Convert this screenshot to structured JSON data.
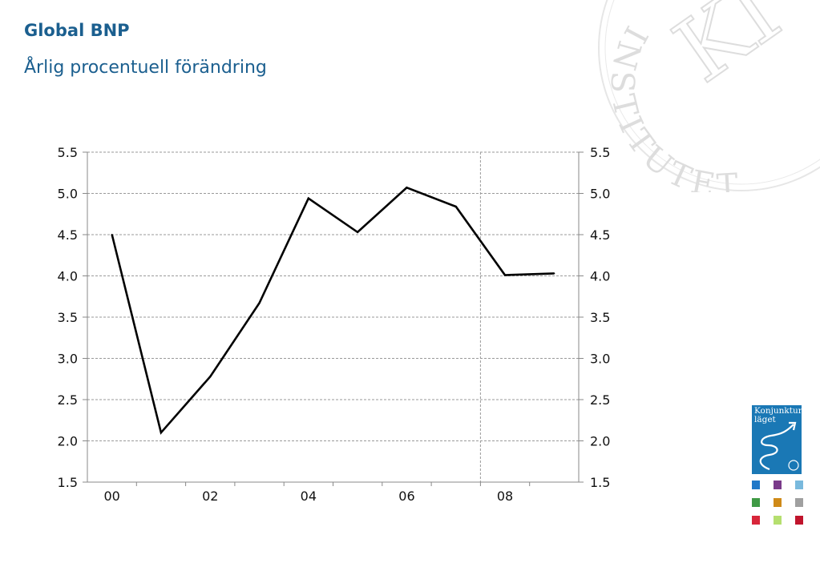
{
  "header": {
    "title": "Global BNP",
    "subtitle": "Årlig procentuell förändring"
  },
  "watermark": {
    "text": "INSTITUTET",
    "monogram": "KI",
    "color": "#dcdcdc"
  },
  "logo": {
    "text_line1": "Konjunktur",
    "text_line2": "läget",
    "color": "#1a78b5",
    "icon": "konjunkturlaget-cover-icon"
  },
  "swatches": [
    "#1f78c8",
    "#7a3a8a",
    "#79b9dd",
    "#3f9a45",
    "#cf8a18",
    "#a0a0a0",
    "#d8263a",
    "#b5df6f",
    "#c0142c"
  ],
  "chart_data": {
    "type": "line",
    "title": "Global BNP",
    "subtitle": "Årlig procentuell förändring",
    "x": [
      "2000",
      "2001",
      "2002",
      "2003",
      "2004",
      "2005",
      "2006",
      "2007",
      "2008",
      "2009"
    ],
    "x_tick_labels": [
      "00",
      "02",
      "04",
      "06",
      "08"
    ],
    "y_tick_labels": [
      "5.5",
      "5.0",
      "4.5",
      "4.0",
      "3.5",
      "3.0",
      "2.5",
      "2.0",
      "1.5"
    ],
    "series": [
      {
        "values": [
          4.5,
          2.1,
          2.78,
          3.67,
          4.94,
          4.53,
          5.07,
          4.84,
          4.01,
          4.03
        ],
        "color": "#000000"
      }
    ],
    "ylim": [
      1.5,
      5.5
    ],
    "forecast_divider_after": "2007",
    "grid": true,
    "y_axis_both_sides": true
  }
}
